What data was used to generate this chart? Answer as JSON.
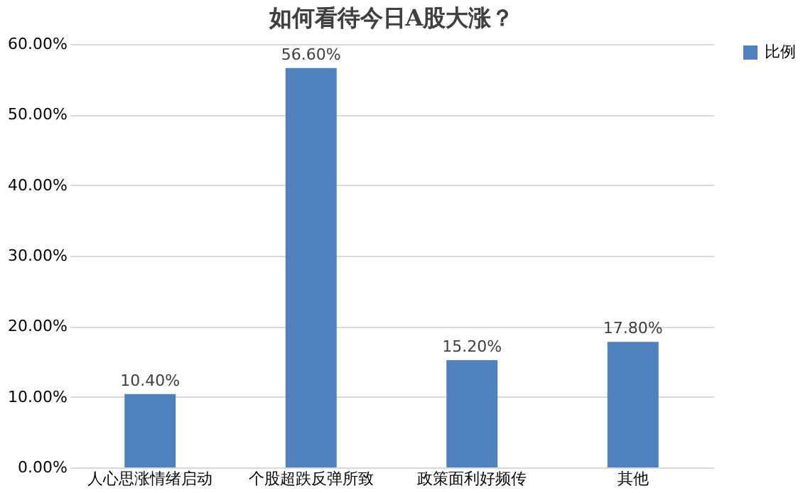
{
  "chart_data": {
    "type": "bar",
    "title": "如何看待今日A股大涨？",
    "categories": [
      "人心思涨情绪启动",
      "个股超跌反弹所致",
      "政策面利好频传",
      "其他"
    ],
    "series": [
      {
        "name": "比例",
        "color": "#4f81bd",
        "values": [
          10.4,
          56.6,
          15.2,
          17.8
        ],
        "value_labels": [
          "10.40%",
          "56.60%",
          "15.20%",
          "17.80%"
        ]
      }
    ],
    "ylim": [
      0,
      60
    ],
    "yticks": [
      {
        "value": 0,
        "label": "0.00%"
      },
      {
        "value": 10,
        "label": "10.00%"
      },
      {
        "value": 20,
        "label": "20.00%"
      },
      {
        "value": 30,
        "label": "30.00%"
      },
      {
        "value": 40,
        "label": "40.00%"
      },
      {
        "value": 50,
        "label": "50.00%"
      },
      {
        "value": 60,
        "label": "60.00%"
      }
    ],
    "grid": "y",
    "legend": "right"
  }
}
